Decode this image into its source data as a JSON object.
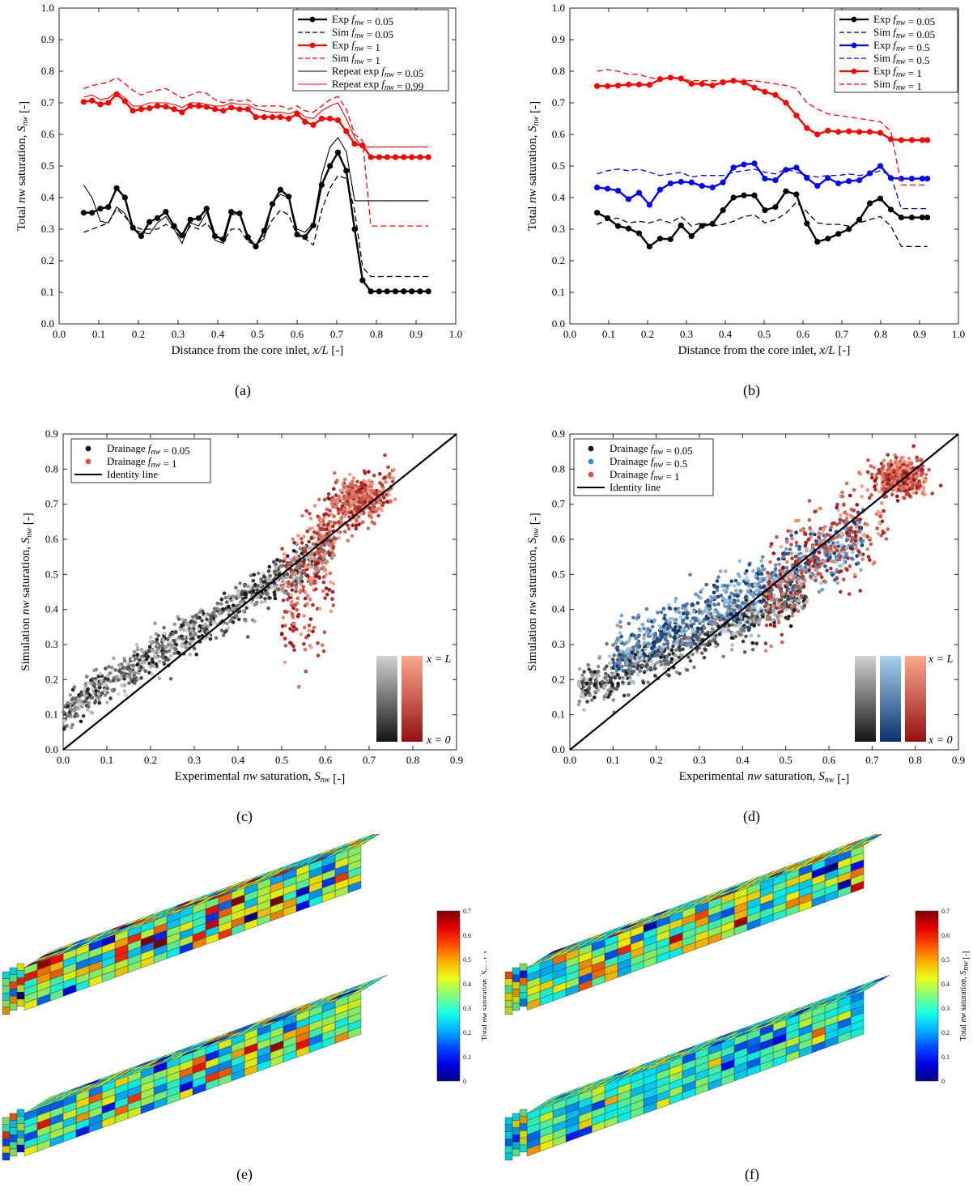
{
  "panel_labels": [
    "(a)",
    "(b)",
    "(c)",
    "(d)",
    "(e)",
    "(f)"
  ],
  "colorbar": {
    "label": "Total nw saturation, S_nw [-]",
    "ticks": [
      "0",
      "0.1",
      "0.2",
      "0.3",
      "0.4",
      "0.5",
      "0.6",
      "0.7"
    ]
  },
  "gradient_labels": {
    "top": "x = L",
    "bottom": "x = 0"
  },
  "colors": {
    "black": "#000000",
    "red": "#ff0000",
    "blue": "#0000ff",
    "scatter_black": "#111111",
    "scatter_red": "#e74c3c",
    "scatter_blue": "#3a8cc4"
  },
  "chart_data": [
    {
      "id": "a",
      "type": "line",
      "xlabel": "Distance from the core inlet, x/L [-]",
      "ylabel": "Total nw saturation, S_nw [-]",
      "xlim": [
        0,
        1
      ],
      "ylim": [
        0,
        1
      ],
      "xticks": [
        0,
        0.1,
        0.2,
        0.3,
        0.4,
        0.5,
        0.6,
        0.7,
        0.8,
        0.9,
        1.0
      ],
      "yticks": [
        0,
        0.1,
        0.2,
        0.3,
        0.4,
        0.5,
        0.6,
        0.7,
        0.8,
        0.9,
        1.0
      ],
      "legend_position": "top-right",
      "x": [
        0.062,
        0.083,
        0.104,
        0.124,
        0.145,
        0.166,
        0.186,
        0.207,
        0.228,
        0.248,
        0.269,
        0.29,
        0.31,
        0.331,
        0.352,
        0.372,
        0.393,
        0.414,
        0.434,
        0.455,
        0.476,
        0.496,
        0.517,
        0.538,
        0.558,
        0.579,
        0.6,
        0.62,
        0.641,
        0.662,
        0.683,
        0.703,
        0.724,
        0.745,
        0.765,
        0.786,
        0.807,
        0.827,
        0.848,
        0.869,
        0.889,
        0.91,
        0.931
      ],
      "series": [
        {
          "name": "Exp f_nw = 0.05",
          "color": "#000000",
          "style": "solid",
          "width": 2.4,
          "marker": true,
          "values": [
            0.352,
            0.352,
            0.365,
            0.37,
            0.43,
            0.4,
            0.305,
            0.278,
            0.323,
            0.335,
            0.355,
            0.31,
            0.28,
            0.33,
            0.335,
            0.365,
            0.278,
            0.268,
            0.355,
            0.35,
            0.275,
            0.245,
            0.295,
            0.38,
            0.425,
            0.403,
            0.283,
            0.275,
            0.312,
            0.44,
            0.5,
            0.543,
            0.485,
            0.3,
            0.138,
            0.103,
            0.103,
            0.103,
            0.103,
            0.103,
            0.103,
            0.103,
            0.103
          ]
        },
        {
          "name": "Sim f_nw = 0.05",
          "color": "#000000",
          "style": "dashed",
          "width": 1.3,
          "marker": false,
          "values": [
            0.29,
            0.3,
            0.31,
            0.32,
            0.365,
            0.34,
            0.31,
            0.3,
            0.3,
            0.3,
            0.315,
            0.3,
            0.27,
            0.31,
            0.3,
            0.32,
            0.28,
            0.26,
            0.3,
            0.3,
            0.26,
            0.25,
            0.28,
            0.33,
            0.36,
            0.345,
            0.28,
            0.27,
            0.25,
            0.36,
            0.43,
            0.47,
            0.46,
            0.36,
            0.18,
            0.15,
            0.15,
            0.15,
            0.15,
            0.15,
            0.15,
            0.15,
            0.15
          ]
        },
        {
          "name": "Exp f_nw = 1",
          "color": "#ff0000",
          "style": "solid",
          "width": 2.4,
          "marker": true,
          "values": [
            0.703,
            0.707,
            0.695,
            0.7,
            0.727,
            0.705,
            0.675,
            0.68,
            0.683,
            0.69,
            0.688,
            0.68,
            0.67,
            0.69,
            0.69,
            0.687,
            0.68,
            0.675,
            0.685,
            0.68,
            0.68,
            0.655,
            0.655,
            0.655,
            0.655,
            0.65,
            0.665,
            0.64,
            0.63,
            0.65,
            0.65,
            0.645,
            0.61,
            0.57,
            0.565,
            0.528,
            0.528,
            0.528,
            0.528,
            0.528,
            0.528,
            0.528,
            0.528
          ]
        },
        {
          "name": "Sim f_nw = 1",
          "color": "#ff0000",
          "style": "dashed",
          "width": 1.3,
          "marker": false,
          "values": [
            0.745,
            0.755,
            0.76,
            0.765,
            0.78,
            0.76,
            0.74,
            0.725,
            0.735,
            0.74,
            0.745,
            0.73,
            0.715,
            0.725,
            0.735,
            0.73,
            0.71,
            0.7,
            0.71,
            0.705,
            0.71,
            0.69,
            0.69,
            0.69,
            0.69,
            0.68,
            0.69,
            0.675,
            0.67,
            0.69,
            0.71,
            0.72,
            0.68,
            0.6,
            0.58,
            0.31,
            0.31,
            0.31,
            0.31,
            0.31,
            0.31,
            0.31,
            0.31
          ]
        },
        {
          "name": "Repeat exp f_nw = 0.05",
          "color": "#000000",
          "style": "solid",
          "width": 1.1,
          "marker": false,
          "values": [
            0.44,
            0.4,
            0.325,
            0.32,
            0.37,
            0.35,
            0.3,
            0.29,
            0.285,
            0.32,
            0.34,
            0.3,
            0.255,
            0.32,
            0.31,
            0.355,
            0.265,
            0.255,
            0.345,
            0.35,
            0.265,
            0.25,
            0.27,
            0.385,
            0.41,
            0.4,
            0.3,
            0.29,
            0.32,
            0.47,
            0.56,
            0.59,
            0.545,
            0.39,
            0.39,
            0.39,
            0.39,
            0.39,
            0.39,
            0.39,
            0.39,
            0.39,
            0.39
          ]
        },
        {
          "name": "Repeat exp f_nw = 0.99",
          "color": "#ff0000",
          "style": "solid",
          "width": 1.1,
          "marker": false,
          "values": [
            0.718,
            0.725,
            0.71,
            0.715,
            0.735,
            0.715,
            0.69,
            0.69,
            0.7,
            0.7,
            0.7,
            0.695,
            0.685,
            0.7,
            0.7,
            0.695,
            0.69,
            0.69,
            0.7,
            0.695,
            0.695,
            0.68,
            0.675,
            0.67,
            0.67,
            0.665,
            0.675,
            0.655,
            0.65,
            0.675,
            0.69,
            0.7,
            0.65,
            0.59,
            0.56,
            0.56,
            0.56,
            0.56,
            0.56,
            0.56,
            0.56,
            0.56,
            0.56
          ]
        }
      ]
    },
    {
      "id": "b",
      "type": "line",
      "xlabel": "Distance from the core inlet, x/L [-]",
      "ylabel": "Total nw saturation, S_nw [-]",
      "xlim": [
        0,
        1
      ],
      "ylim": [
        0,
        1
      ],
      "xticks": [
        0,
        0.1,
        0.2,
        0.3,
        0.4,
        0.5,
        0.6,
        0.7,
        0.8,
        0.9,
        1.0
      ],
      "yticks": [
        0,
        0.1,
        0.2,
        0.3,
        0.4,
        0.5,
        0.6,
        0.7,
        0.8,
        0.9,
        1.0
      ],
      "legend_position": "top-right",
      "x": [
        0.07,
        0.097,
        0.124,
        0.151,
        0.178,
        0.205,
        0.232,
        0.259,
        0.286,
        0.313,
        0.34,
        0.367,
        0.394,
        0.421,
        0.448,
        0.475,
        0.502,
        0.529,
        0.556,
        0.583,
        0.61,
        0.637,
        0.664,
        0.691,
        0.718,
        0.745,
        0.772,
        0.799,
        0.826,
        0.853,
        0.88,
        0.907,
        0.92
      ],
      "series": [
        {
          "name": "Exp f_nw = 0.05",
          "color": "#000000",
          "style": "solid",
          "width": 2.4,
          "marker": true,
          "values": [
            0.352,
            0.335,
            0.31,
            0.302,
            0.287,
            0.245,
            0.27,
            0.268,
            0.312,
            0.278,
            0.31,
            0.317,
            0.36,
            0.4,
            0.407,
            0.407,
            0.36,
            0.37,
            0.42,
            0.41,
            0.318,
            0.26,
            0.27,
            0.285,
            0.3,
            0.33,
            0.382,
            0.397,
            0.362,
            0.337,
            0.337,
            0.337,
            0.337
          ]
        },
        {
          "name": "Sim f_nw = 0.05",
          "color": "#000000",
          "style": "dashed",
          "width": 1.3,
          "marker": false,
          "values": [
            0.315,
            0.33,
            0.335,
            0.32,
            0.325,
            0.32,
            0.33,
            0.32,
            0.34,
            0.31,
            0.32,
            0.31,
            0.315,
            0.325,
            0.34,
            0.345,
            0.32,
            0.33,
            0.35,
            0.385,
            0.355,
            0.32,
            0.315,
            0.315,
            0.31,
            0.32,
            0.33,
            0.34,
            0.31,
            0.245,
            0.245,
            0.245,
            0.245
          ]
        },
        {
          "name": "Exp f_nw = 0.5",
          "color": "#0000ff",
          "style": "solid",
          "width": 2.4,
          "marker": true,
          "values": [
            0.432,
            0.428,
            0.422,
            0.395,
            0.415,
            0.377,
            0.425,
            0.445,
            0.45,
            0.448,
            0.437,
            0.432,
            0.448,
            0.495,
            0.505,
            0.508,
            0.46,
            0.455,
            0.488,
            0.495,
            0.462,
            0.437,
            0.462,
            0.445,
            0.452,
            0.455,
            0.477,
            0.5,
            0.462,
            0.46,
            0.46,
            0.46,
            0.46
          ]
        },
        {
          "name": "Sim f_nw = 0.5",
          "color": "#0000ff",
          "style": "dashed",
          "width": 1.3,
          "marker": false,
          "values": [
            0.475,
            0.485,
            0.49,
            0.485,
            0.49,
            0.48,
            0.47,
            0.475,
            0.48,
            0.465,
            0.47,
            0.47,
            0.47,
            0.48,
            0.485,
            0.49,
            0.48,
            0.475,
            0.49,
            0.48,
            0.47,
            0.465,
            0.47,
            0.47,
            0.475,
            0.47,
            0.475,
            0.485,
            0.47,
            0.365,
            0.365,
            0.365,
            0.365
          ]
        },
        {
          "name": "Exp f_nw = 1",
          "color": "#ff0000",
          "style": "solid",
          "width": 2.4,
          "marker": true,
          "values": [
            0.753,
            0.753,
            0.755,
            0.758,
            0.758,
            0.757,
            0.775,
            0.78,
            0.777,
            0.76,
            0.76,
            0.755,
            0.765,
            0.77,
            0.765,
            0.748,
            0.735,
            0.725,
            0.7,
            0.66,
            0.62,
            0.6,
            0.612,
            0.608,
            0.61,
            0.608,
            0.608,
            0.605,
            0.585,
            0.582,
            0.582,
            0.582,
            0.582
          ]
        },
        {
          "name": "Sim f_nw = 1",
          "color": "#ff0000",
          "style": "dashed",
          "width": 1.3,
          "marker": false,
          "values": [
            0.8,
            0.805,
            0.8,
            0.79,
            0.79,
            0.78,
            0.775,
            0.78,
            0.775,
            0.77,
            0.77,
            0.77,
            0.77,
            0.765,
            0.77,
            0.77,
            0.765,
            0.76,
            0.755,
            0.745,
            0.7,
            0.68,
            0.665,
            0.66,
            0.655,
            0.65,
            0.645,
            0.64,
            0.61,
            0.44,
            0.44,
            0.44,
            0.44
          ]
        }
      ]
    },
    {
      "id": "c",
      "type": "scatter",
      "xlabel": "Experimental nw saturation, S_nw [-]",
      "ylabel": "Simulation nw saturation, S_nw [-]",
      "xlim": [
        0,
        0.9
      ],
      "ylim": [
        0,
        0.9
      ],
      "xticks": [
        0,
        0.1,
        0.2,
        0.3,
        0.4,
        0.5,
        0.6,
        0.7,
        0.8,
        0.9
      ],
      "yticks": [
        0,
        0.1,
        0.2,
        0.3,
        0.4,
        0.5,
        0.6,
        0.7,
        0.8,
        0.9
      ],
      "legend_position": "top-left",
      "series": [
        {
          "name": "Drainage f_nw = 0.05",
          "color": "#111111",
          "x_range": [
            0,
            0.62
          ],
          "count": 900
        },
        {
          "name": "Drainage f_nw = 1",
          "color": "#e74c3c",
          "x_range": [
            0.47,
            0.77
          ],
          "count": 650
        },
        {
          "name": "Identity line",
          "color": "#000000",
          "type": "line"
        }
      ]
    },
    {
      "id": "d",
      "type": "scatter",
      "xlabel": "Experimental nw saturation, S_nw [-]",
      "ylabel": "Simulation nw saturation, S_nw [-]",
      "xlim": [
        0,
        0.9
      ],
      "ylim": [
        0,
        0.9
      ],
      "xticks": [
        0,
        0.1,
        0.2,
        0.3,
        0.4,
        0.5,
        0.6,
        0.7,
        0.8,
        0.9
      ],
      "yticks": [
        0,
        0.1,
        0.2,
        0.3,
        0.4,
        0.5,
        0.6,
        0.7,
        0.8,
        0.9
      ],
      "legend_position": "top-left",
      "series": [
        {
          "name": "Drainage f_nw = 0.05",
          "color": "#111111",
          "x_range": [
            0.02,
            0.55
          ],
          "count": 800
        },
        {
          "name": "Drainage f_nw = 0.5",
          "color": "#3a8cc4",
          "x_range": [
            0.1,
            0.68
          ],
          "count": 800
        },
        {
          "name": "Drainage f_nw = 1",
          "color": "#e74c3c",
          "x_range": [
            0.45,
            0.82
          ],
          "count": 700
        },
        {
          "name": "Identity line",
          "color": "#000000",
          "type": "line"
        }
      ]
    }
  ]
}
